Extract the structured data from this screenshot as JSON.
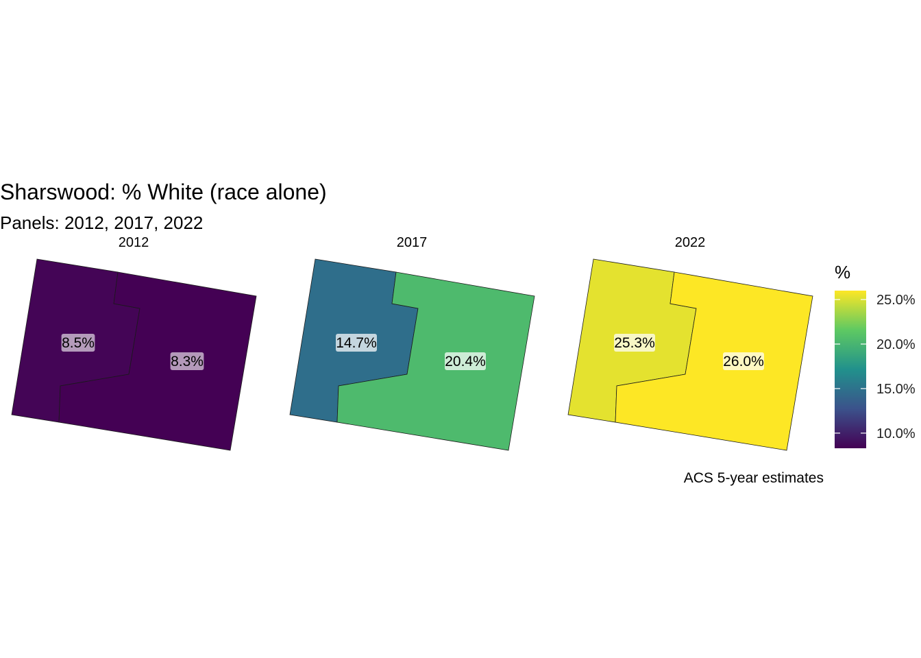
{
  "chart_data": {
    "type": "choropleth-map",
    "title": "Sharswood: % White (race alone)",
    "subtitle": "Panels: 2012, 2017, 2022",
    "caption": "ACS 5-year estimates",
    "legend": {
      "title": "%",
      "placement": "right",
      "range": [
        8.3,
        26.0
      ],
      "breaks": [
        10,
        15,
        20,
        25
      ],
      "tick_labels": [
        "10.0%",
        "15.0%",
        "20.0%",
        "25.0%"
      ],
      "palette": [
        "#440154",
        "#3b528b",
        "#21918c",
        "#5ec962",
        "#fde725"
      ]
    },
    "panels": [
      {
        "label": "2012",
        "values": {
          "west": 8.5,
          "east": 8.3
        },
        "labels": {
          "west": "8.5%",
          "east": "8.3%"
        }
      },
      {
        "label": "2017",
        "values": {
          "west": 14.7,
          "east": 20.4
        },
        "labels": {
          "west": "14.7%",
          "east": "20.4%"
        }
      },
      {
        "label": "2022",
        "values": {
          "west": 25.3,
          "east": 26.0
        },
        "labels": {
          "west": "25.3%",
          "east": "26.0%"
        }
      }
    ]
  }
}
